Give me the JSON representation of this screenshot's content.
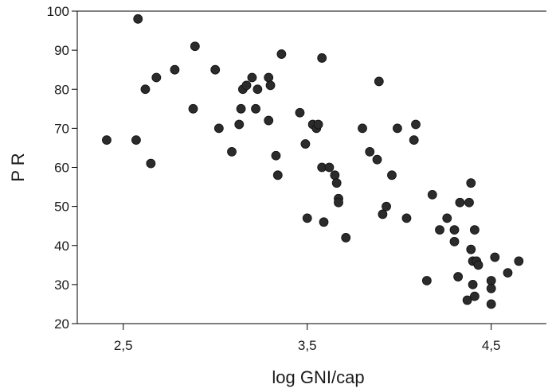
{
  "chart_data": {
    "type": "scatter",
    "title": "",
    "xlabel": "log GNI/cap",
    "ylabel": "P R",
    "xlim": [
      2.25,
      4.8
    ],
    "ylim": [
      20,
      100
    ],
    "xticks": [
      2.5,
      3.5,
      4.5
    ],
    "xtick_labels": [
      "2,5",
      "3,5",
      "4,5"
    ],
    "yticks": [
      20,
      30,
      40,
      50,
      60,
      70,
      80,
      90,
      100
    ],
    "ytick_labels": [
      "20",
      "30",
      "40",
      "50",
      "60",
      "70",
      "80",
      "90",
      "100"
    ],
    "grid": false,
    "legend": "none",
    "point_color": "#2b2b2b",
    "points": [
      [
        2.41,
        67
      ],
      [
        2.57,
        67
      ],
      [
        2.58,
        98
      ],
      [
        2.62,
        80
      ],
      [
        2.65,
        61
      ],
      [
        2.68,
        83
      ],
      [
        2.78,
        85
      ],
      [
        2.88,
        75
      ],
      [
        2.89,
        91
      ],
      [
        3.0,
        85
      ],
      [
        3.02,
        70
      ],
      [
        3.09,
        64
      ],
      [
        3.13,
        71
      ],
      [
        3.14,
        75
      ],
      [
        3.15,
        80
      ],
      [
        3.17,
        81
      ],
      [
        3.2,
        83
      ],
      [
        3.22,
        75
      ],
      [
        3.23,
        80
      ],
      [
        3.29,
        83
      ],
      [
        3.29,
        72
      ],
      [
        3.3,
        81
      ],
      [
        3.33,
        63
      ],
      [
        3.34,
        58
      ],
      [
        3.36,
        89
      ],
      [
        3.46,
        74
      ],
      [
        3.49,
        66
      ],
      [
        3.5,
        47
      ],
      [
        3.53,
        71
      ],
      [
        3.55,
        70
      ],
      [
        3.56,
        71
      ],
      [
        3.58,
        60
      ],
      [
        3.58,
        88
      ],
      [
        3.59,
        46
      ],
      [
        3.62,
        60
      ],
      [
        3.65,
        58
      ],
      [
        3.66,
        56
      ],
      [
        3.67,
        52
      ],
      [
        3.67,
        51
      ],
      [
        3.71,
        42
      ],
      [
        3.8,
        70
      ],
      [
        3.84,
        64
      ],
      [
        3.88,
        62
      ],
      [
        3.89,
        82
      ],
      [
        3.91,
        48
      ],
      [
        3.93,
        50
      ],
      [
        3.96,
        58
      ],
      [
        3.99,
        70
      ],
      [
        4.04,
        47
      ],
      [
        4.08,
        67
      ],
      [
        4.09,
        71
      ],
      [
        4.15,
        31
      ],
      [
        4.18,
        53
      ],
      [
        4.22,
        44
      ],
      [
        4.26,
        47
      ],
      [
        4.3,
        44
      ],
      [
        4.3,
        41
      ],
      [
        4.32,
        32
      ],
      [
        4.33,
        51
      ],
      [
        4.37,
        26
      ],
      [
        4.38,
        51
      ],
      [
        4.39,
        39
      ],
      [
        4.39,
        56
      ],
      [
        4.4,
        36
      ],
      [
        4.4,
        30
      ],
      [
        4.41,
        44
      ],
      [
        4.41,
        27
      ],
      [
        4.42,
        36
      ],
      [
        4.43,
        35
      ],
      [
        4.5,
        31
      ],
      [
        4.5,
        29
      ],
      [
        4.5,
        25
      ],
      [
        4.52,
        37
      ],
      [
        4.59,
        33
      ],
      [
        4.65,
        36
      ]
    ]
  }
}
